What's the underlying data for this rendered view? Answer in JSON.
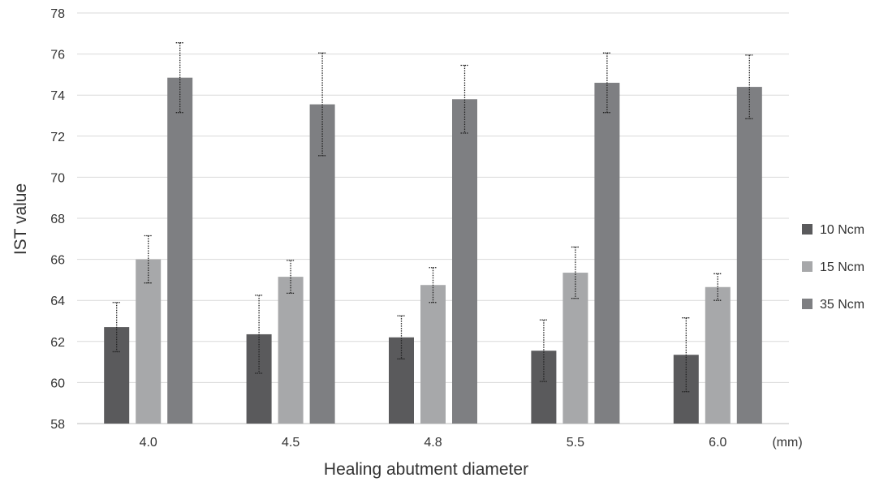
{
  "chart_data": {
    "type": "bar",
    "xlabel": "Healing abutment diameter",
    "x_unit": "(mm)",
    "ylabel": "IST value",
    "ylim": [
      58,
      78
    ],
    "ytick_step": 2,
    "grid": true,
    "legend_position": "right",
    "categories": [
      "4.0",
      "4.5",
      "4.8",
      "5.5",
      "6.0"
    ],
    "series": [
      {
        "name": "10 Ncm",
        "color": "#5a5a5c",
        "values": [
          62.7,
          62.35,
          62.2,
          61.55,
          61.35
        ],
        "error": [
          1.2,
          1.9,
          1.05,
          1.5,
          1.8
        ]
      },
      {
        "name": "15 Ncm",
        "color": "#a7a8aa",
        "values": [
          66.0,
          65.15,
          64.75,
          65.35,
          64.65
        ],
        "error": [
          1.15,
          0.8,
          0.85,
          1.25,
          0.65
        ]
      },
      {
        "name": "35 Ncm",
        "color": "#7e7f82",
        "values": [
          74.85,
          73.55,
          73.8,
          74.6,
          74.4
        ],
        "error": [
          1.7,
          2.5,
          1.65,
          1.45,
          1.55
        ]
      }
    ]
  }
}
